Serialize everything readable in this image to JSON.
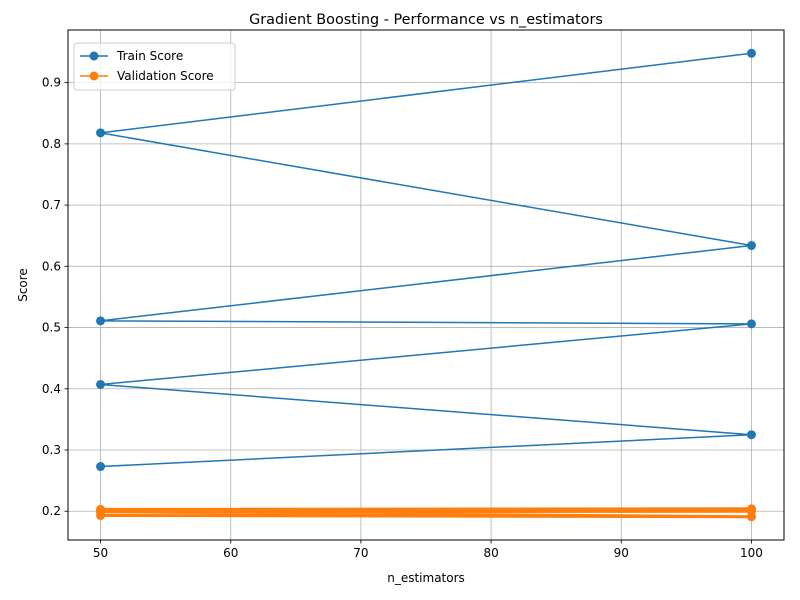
{
  "chart_data": {
    "type": "line",
    "title": "Gradient Boosting - Performance vs n_estimators",
    "xlabel": "n_estimators",
    "ylabel": "Score",
    "xlim": [
      47.5,
      102.5
    ],
    "ylim": [
      0.153,
      0.986
    ],
    "xticks": [
      50,
      60,
      70,
      80,
      90,
      100
    ],
    "yticks": [
      0.2,
      0.3,
      0.4,
      0.5,
      0.6,
      0.7,
      0.8,
      0.9
    ],
    "grid": true,
    "legend_position": "top-left",
    "series": [
      {
        "name": "Train Score",
        "color": "#1f77b4",
        "x": [
          100,
          50,
          100,
          50,
          100,
          50,
          100,
          50
        ],
        "y": [
          0.948,
          0.818,
          0.634,
          0.511,
          0.506,
          0.407,
          0.325,
          0.273
        ]
      },
      {
        "name": "Validation Score",
        "color": "#ff7f0e",
        "x": [
          100,
          50,
          100,
          50,
          100,
          50,
          100,
          50
        ],
        "y": [
          0.204,
          0.203,
          0.202,
          0.201,
          0.2,
          0.199,
          0.191,
          0.193
        ]
      }
    ]
  }
}
